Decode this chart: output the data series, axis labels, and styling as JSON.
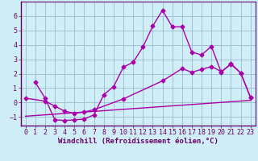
{
  "xlabel": "Windchill (Refroidissement éolien,°C)",
  "bg_color": "#d0eef8",
  "plot_bg_color": "#d0eef8",
  "line_color": "#aa00aa",
  "grid_color": "#99bbcc",
  "spine_color": "#660066",
  "xlim": [
    -0.5,
    23.5
  ],
  "ylim": [
    -1.6,
    7.0
  ],
  "yticks": [
    -1,
    0,
    1,
    2,
    3,
    4,
    5,
    6
  ],
  "xticks": [
    0,
    1,
    2,
    3,
    4,
    5,
    6,
    7,
    8,
    9,
    10,
    11,
    12,
    13,
    14,
    15,
    16,
    17,
    18,
    19,
    20,
    21,
    22,
    23
  ],
  "line1_x": [
    1,
    2,
    3,
    4,
    5,
    6,
    7,
    8,
    9,
    10,
    11,
    12,
    13,
    14,
    15,
    16,
    17,
    18,
    19,
    20,
    21,
    22,
    23
  ],
  "line1_y": [
    1.4,
    0.3,
    -1.2,
    -1.25,
    -1.2,
    -1.15,
    -0.85,
    0.55,
    1.1,
    2.45,
    2.8,
    3.85,
    5.3,
    6.4,
    5.25,
    5.25,
    3.5,
    3.3,
    3.9,
    2.1,
    2.7,
    2.05,
    0.35
  ],
  "line2_x": [
    0,
    2,
    3,
    4,
    5,
    6,
    7,
    10,
    14,
    16,
    17,
    18,
    19,
    20,
    21,
    22,
    23
  ],
  "line2_y": [
    0.3,
    0.1,
    -0.25,
    -0.6,
    -0.75,
    -0.65,
    -0.5,
    0.25,
    1.5,
    2.35,
    2.1,
    2.3,
    2.5,
    2.15,
    2.65,
    2.05,
    0.35
  ],
  "line3_x": [
    0,
    23
  ],
  "line3_y": [
    -0.95,
    0.15
  ],
  "marker": "D",
  "markersize": 2.5,
  "linewidth": 1.0,
  "xlabel_fontsize": 6.5,
  "tick_fontsize": 6.0
}
